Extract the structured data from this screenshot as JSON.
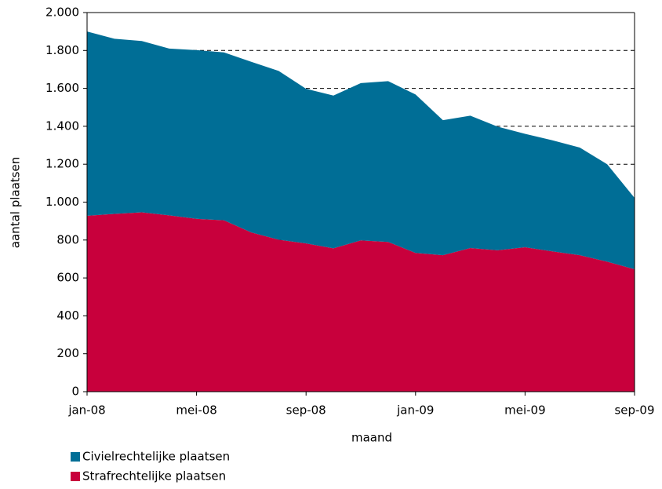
{
  "chart_data": {
    "type": "stacked_area",
    "x_label": "maand",
    "y_label": "aantal plaatsen",
    "categories": [
      "jan-08",
      null,
      null,
      null,
      "mei-08",
      null,
      null,
      null,
      "sep-08",
      null,
      null,
      null,
      "jan-09",
      null,
      null,
      null,
      "mei-09",
      null,
      null,
      null,
      "sep-09"
    ],
    "series": [
      {
        "name": "Strafrechtelijke plaatsen",
        "color": "#c8003c",
        "values": [
          928,
          938,
          946,
          930,
          912,
          904,
          840,
          802,
          782,
          756,
          798,
          790,
          732,
          720,
          758,
          746,
          762,
          740,
          720,
          686,
          646
        ]
      },
      {
        "name": "Civielrechtelijke plaatsen",
        "color": "#006e96",
        "values": [
          972,
          924,
          904,
          880,
          890,
          886,
          900,
          890,
          816,
          806,
          830,
          848,
          836,
          712,
          698,
          652,
          598,
          586,
          568,
          514,
          376
        ]
      }
    ],
    "ylim": [
      0,
      2000
    ],
    "yticks": [
      0,
      200,
      400,
      600,
      800,
      {
        "value": 1000,
        "label": "1.000"
      },
      {
        "value": 1200,
        "label": "1.200"
      },
      {
        "value": 1400,
        "label": "1.400"
      },
      {
        "value": 1600,
        "label": "1.600"
      },
      {
        "value": 1800,
        "label": "1.800"
      },
      {
        "value": 2000,
        "label": "2.000"
      }
    ],
    "grid": true
  }
}
